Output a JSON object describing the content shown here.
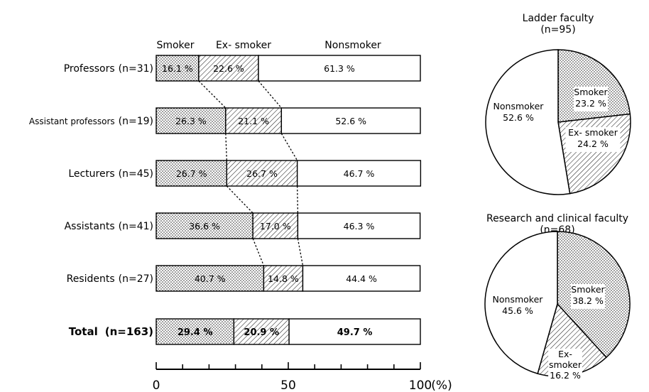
{
  "chart_data": [
    {
      "type": "bar",
      "orientation": "horizontal",
      "stacked": true,
      "headers": [
        "Smoker",
        "Ex-smoker",
        "Nonsmoker"
      ],
      "categories": [
        "Professors (n=31)",
        "Assistant professors (n=19)",
        "Lecturers (n=45)",
        "Assistants (n=41)",
        "Residents (n=27)",
        "Total (n=163)"
      ],
      "cat_names": [
        "Professors",
        "Assistant professors",
        "Lecturers",
        "Assistants",
        "Residents",
        "Total"
      ],
      "cat_n": [
        "(n=31)",
        "(n=19)",
        "(n=45)",
        "(n=41)",
        "(n=27)",
        "(n=163)"
      ],
      "series": [
        {
          "name": "Smoker",
          "values": [
            16.1,
            26.3,
            26.7,
            36.6,
            40.7,
            29.4
          ],
          "labels": [
            "16.1 %",
            "26.3 %",
            "26.7 %",
            "36.6 %",
            "40.7 %",
            "29.4 %"
          ]
        },
        {
          "name": "Ex-smoker",
          "values": [
            22.6,
            21.1,
            26.7,
            17.0,
            14.8,
            20.9
          ],
          "labels": [
            "22.6 %",
            "21.1 %",
            "26.7 %",
            "17.0 %",
            "14.8 %",
            "20.9 %"
          ]
        },
        {
          "name": "Nonsmoker",
          "values": [
            61.3,
            52.6,
            46.7,
            46.3,
            44.4,
            49.7
          ],
          "labels": [
            "61.3 %",
            "52.6 %",
            "46.7 %",
            "46.3 %",
            "44.4 %",
            "49.7 %"
          ]
        }
      ],
      "xlim": [
        0,
        100
      ],
      "x_ticks": [
        "0",
        "50",
        "100"
      ],
      "x_unit": "(%)",
      "patterns": [
        "dotted",
        "hatched",
        "white"
      ]
    },
    {
      "type": "pie",
      "title": "Ladder faculty",
      "subtitle": "(n=95)",
      "slices": [
        {
          "name": "Smoker",
          "value": 23.2,
          "label": "23.2 %",
          "pattern": "dotted"
        },
        {
          "name": "Ex-smoker",
          "value": 24.2,
          "label": "24.2 %",
          "pattern": "hatched"
        },
        {
          "name": "Nonsmoker",
          "value": 52.6,
          "label": "52.6 %",
          "pattern": "white"
        }
      ]
    },
    {
      "type": "pie",
      "title": "Research and clinical faculty",
      "subtitle": "(n=68)",
      "slices": [
        {
          "name": "Smoker",
          "value": 38.2,
          "label": "38.2 %",
          "pattern": "dotted"
        },
        {
          "name": "Ex-smoker",
          "value": 16.2,
          "label": "16.2 %",
          "pattern": "hatched"
        },
        {
          "name": "Nonsmoker",
          "value": 45.6,
          "label": "45.6 %",
          "pattern": "white"
        }
      ]
    }
  ],
  "pie_labels": [
    {
      "name": "Smoker",
      "val": "23.2 %",
      "n1": "Smoker",
      "n2": "23.2 %"
    },
    {
      "name": "Ex-smoker",
      "val": "24.2 %",
      "n1": "Ex- smoker",
      "n2": "24.2 %"
    },
    {
      "name": "Nonsmoker",
      "val": "52.6 %",
      "n1": "Nonsmoker",
      "n2": "52.6 %"
    }
  ],
  "pie2_labels": {
    "smoker": [
      "Smoker",
      "38.2 %"
    ],
    "ex": [
      "Ex-",
      "smoker",
      "16.2 %"
    ],
    "non": [
      "Nonsmoker",
      "45.6 %"
    ]
  },
  "bar_headers_display": [
    "Smoker",
    "Ex- smoker",
    "Nonsmoker"
  ]
}
